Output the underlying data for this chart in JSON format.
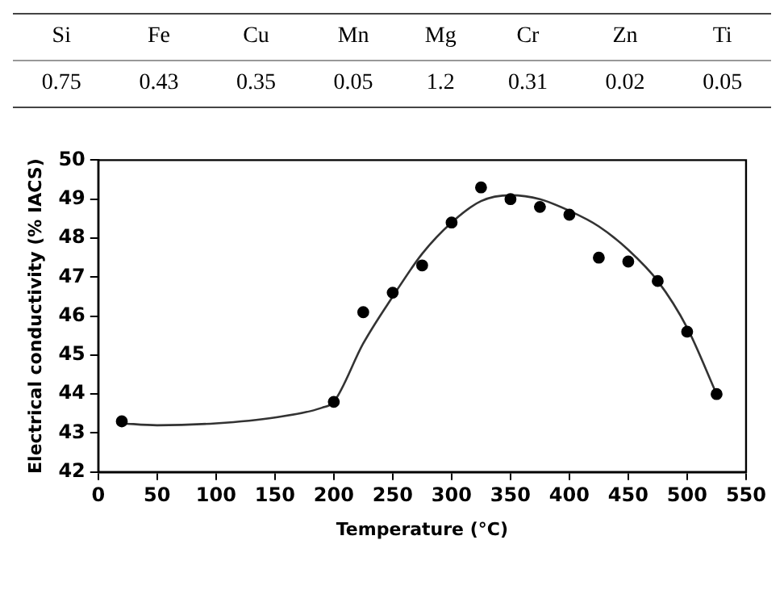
{
  "chart_data": [
    {
      "type": "other",
      "categories": [
        "Si",
        "Fe",
        "Cu",
        "Mn",
        "Mg",
        "Cr",
        "Zn",
        "Ti"
      ],
      "values": [
        0.75,
        0.43,
        0.35,
        0.05,
        1.2,
        0.31,
        0.02,
        0.05
      ],
      "data_labels": true
    },
    {
      "type": "scatter",
      "xlabel": "Temperature (°C)",
      "ylabel": "Electrical conductivity (% IACS)",
      "xlim": [
        0,
        550
      ],
      "xticks": [
        0,
        50,
        100,
        150,
        200,
        250,
        300,
        350,
        400,
        450,
        500,
        550
      ],
      "ylim": [
        42,
        50
      ],
      "yticks": [
        42,
        43,
        44,
        45,
        46,
        47,
        48,
        49,
        50
      ],
      "grid": false,
      "legend": false,
      "marker": "circle",
      "series": [
        {
          "type": "scatter",
          "color": "#000000",
          "x": [
            20,
            200,
            225,
            250,
            275,
            300,
            325,
            350,
            375,
            400,
            425,
            450,
            475,
            500,
            525
          ],
          "values": [
            43.3,
            43.8,
            46.1,
            46.6,
            47.3,
            48.4,
            49.3,
            49.0,
            48.8,
            48.6,
            47.5,
            47.4,
            46.9,
            45.6,
            44.0
          ]
        },
        {
          "type": "line",
          "color": "#333333",
          "marker": "none",
          "line_style": "solid",
          "x": [
            20,
            50,
            100,
            150,
            190,
            200,
            225,
            250,
            275,
            300,
            325,
            350,
            375,
            400,
            425,
            450,
            475,
            500,
            525
          ],
          "values": [
            43.25,
            43.2,
            43.25,
            43.4,
            43.65,
            43.8,
            45.3,
            46.5,
            47.6,
            48.4,
            48.95,
            49.1,
            49.0,
            48.7,
            48.3,
            47.7,
            46.9,
            45.7,
            44.0
          ]
        }
      ]
    }
  ]
}
